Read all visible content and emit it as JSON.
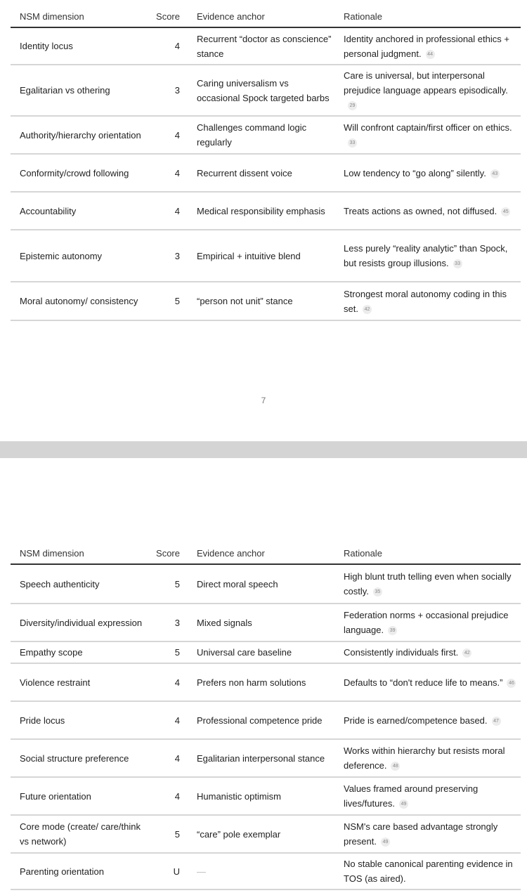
{
  "columns": [
    "NSM dimension",
    "Score",
    "Evidence anchor",
    "Rationale"
  ],
  "page_number": "7",
  "tables": [
    {
      "rows": [
        {
          "dimension": "Identity locus",
          "score": "4",
          "evidence": "Recurrent “doctor as conscience” stance",
          "rationale": "Identity anchored in professional ethics + personal judgment.",
          "cite": "44"
        },
        {
          "dimension": "Egalitarian vs othering",
          "score": "3",
          "evidence": "Caring universalism vs occasional Spock targeted barbs",
          "rationale": "Care is universal, but interpersonal prejudice language appears episodically.",
          "cite": "29"
        },
        {
          "dimension": "Authority/hierarchy orientation",
          "score": "4",
          "evidence": "Challenges command logic regularly",
          "rationale": "Will confront captain/first officer on ethics.",
          "cite": "33"
        },
        {
          "dimension": "Conformity/crowd following",
          "score": "4",
          "evidence": "Recurrent dissent voice",
          "rationale": "Low tendency to “go along” silently.",
          "cite": "43"
        },
        {
          "dimension": "Accountability",
          "score": "4",
          "evidence": "Medical responsibility emphasis",
          "rationale": "Treats actions as owned, not diffused.",
          "cite": "45"
        },
        {
          "dimension": "Epistemic autonomy",
          "score": "3",
          "evidence": "Empirical + intuitive blend",
          "rationale": "Less purely “reality analytic” than Spock, but resists group illusions.",
          "cite": "33"
        },
        {
          "dimension": "Moral autonomy/ consistency",
          "score": "5",
          "evidence": "“person not unit” stance",
          "rationale": "Strongest moral autonomy coding in this set.",
          "cite": "42"
        }
      ]
    },
    {
      "rows": [
        {
          "dimension": "Speech authenticity",
          "score": "5",
          "evidence": "Direct moral speech",
          "rationale": "High blunt truth telling even when socially costly.",
          "cite": "35"
        },
        {
          "dimension": "Diversity/individual expression",
          "score": "3",
          "evidence": "Mixed signals",
          "rationale": "Federation norms + occasional prejudice language.",
          "cite": "39"
        },
        {
          "dimension": "Empathy scope",
          "score": "5",
          "evidence": "Universal care baseline",
          "rationale": "Consistently individuals first.",
          "cite": "42"
        },
        {
          "dimension": "Violence restraint",
          "score": "4",
          "evidence": "Prefers non harm solutions",
          "rationale": "Defaults to “don't reduce life to means.”",
          "cite": "46"
        },
        {
          "dimension": "Pride locus",
          "score": "4",
          "evidence": "Professional competence pride",
          "rationale": "Pride is earned/competence based.",
          "cite": "47"
        },
        {
          "dimension": "Social structure preference",
          "score": "4",
          "evidence": "Egalitarian interpersonal stance",
          "rationale": "Works within hierarchy but resists moral deference.",
          "cite": "48"
        },
        {
          "dimension": "Future orientation",
          "score": "4",
          "evidence": "Humanistic optimism",
          "rationale": "Values framed around preserving lives/futures.",
          "cite": "49"
        },
        {
          "dimension": "Core mode (create/ care/think vs network)",
          "score": "5",
          "evidence": "“care” pole exemplar",
          "rationale": "NSM's care based advantage strongly present.",
          "cite": "49"
        },
        {
          "dimension": "Parenting orientation",
          "score": "U",
          "evidence": "—",
          "rationale": "No stable canonical parenting evidence in TOS (as aired).",
          "cite": ""
        }
      ]
    }
  ]
}
